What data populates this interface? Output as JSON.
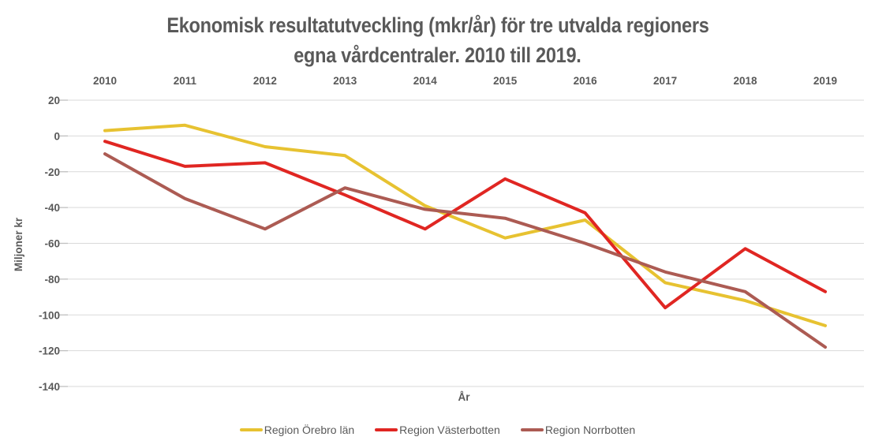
{
  "title": {
    "line1": "Ekonomisk resultatutveckling (mkr/år) för tre utvalda regioners",
    "line2": "egna vårdcentraler. 2010 till 2019."
  },
  "chart_data": {
    "type": "line",
    "x": [
      2010,
      2011,
      2012,
      2013,
      2014,
      2015,
      2016,
      2017,
      2018,
      2019
    ],
    "series": [
      {
        "name": "Region Örebro län",
        "color": "#E7C231",
        "values": [
          3,
          6,
          -6,
          -11,
          -39,
          -57,
          -47,
          -82,
          -92,
          -106
        ]
      },
      {
        "name": "Region Västerbotten",
        "color": "#E02622",
        "values": [
          -3,
          -17,
          -15,
          -33,
          -52,
          -24,
          -43,
          -96,
          -63,
          -87
        ]
      },
      {
        "name": "Region Norrbotten",
        "color": "#AC5B53",
        "values": [
          -10,
          -35,
          -52,
          -29,
          -41,
          -46,
          -60,
          -76,
          -87,
          -118
        ]
      }
    ],
    "xlabel": "År",
    "ylabel": "Miljoner kr",
    "ylim": [
      -140,
      20
    ],
    "ytick_step": 20,
    "grid": "horizontal-only",
    "legend_position": "bottom",
    "x_labels_position": "top"
  },
  "colors": {
    "text": "#595959",
    "gridline": "#D9D9D9",
    "tick": "#BFBFBF",
    "background": "#FFFFFF"
  }
}
